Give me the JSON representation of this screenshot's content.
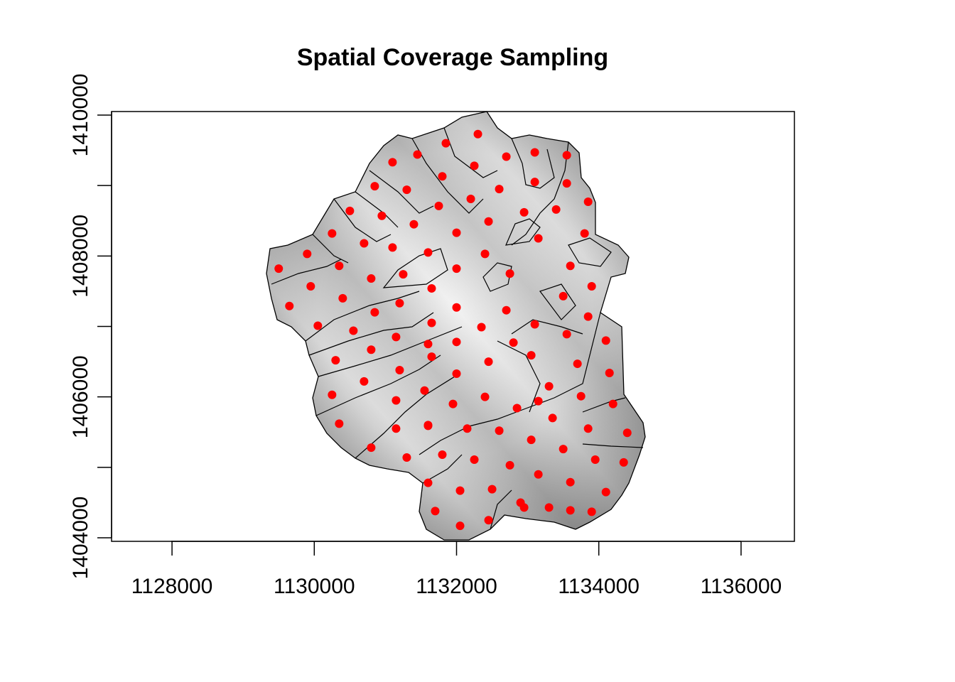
{
  "chart_data": {
    "type": "scatter",
    "title": "Spatial Coverage Sampling",
    "xlabel": "",
    "ylabel": "",
    "xlim": [
      1127150,
      1136750
    ],
    "ylim": [
      1403950,
      1410050
    ],
    "x_ticks": [
      1128000,
      1130000,
      1132000,
      1134000,
      1136000
    ],
    "y_ticks": [
      1404000,
      1406000,
      1408000,
      1410000
    ],
    "x_tick_labels": [
      "1128000",
      "1130000",
      "1132000",
      "1134000",
      "1136000"
    ],
    "y_tick_labels": [
      "1404000",
      "1406000",
      "1408000",
      "1410000"
    ],
    "point_color": "#ff0000",
    "background_layer": "grayscale hillshade of watershed with sub-catchment boundaries",
    "series": [
      {
        "name": "sample points",
        "x": [
          1132300,
          1131850,
          1131450,
          1131100,
          1130850,
          1131300,
          1131800,
          1132250,
          1132700,
          1133100,
          1133550,
          1133100,
          1133550,
          1132600,
          1132200,
          1131750,
          1131400,
          1130500,
          1130950,
          1132450,
          1132950,
          1133400,
          1133850,
          1130250,
          1129900,
          1130700,
          1131100,
          1131600,
          1132000,
          1132400,
          1133150,
          1133800,
          1129500,
          1130350,
          1130800,
          1131250,
          1131650,
          1132000,
          1132750,
          1133600,
          1129950,
          1129650,
          1130400,
          1131200,
          1130850,
          1131650,
          1132000,
          1132350,
          1132700,
          1133100,
          1133500,
          1133900,
          1130050,
          1130550,
          1131150,
          1131650,
          1132450,
          1133050,
          1133550,
          1133850,
          1130300,
          1131200,
          1131600,
          1132000,
          1132800,
          1133150,
          1133700,
          1134100,
          1130800,
          1131550,
          1132000,
          1132400,
          1133300,
          1134150,
          1130250,
          1130700,
          1131150,
          1131600,
          1131950,
          1132850,
          1133350,
          1133750,
          1134200,
          1130350,
          1131150,
          1131600,
          1132150,
          1132600,
          1133050,
          1133500,
          1133850,
          1134400,
          1130800,
          1131300,
          1131800,
          1132250,
          1132750,
          1133150,
          1133600,
          1133950,
          1134350,
          1131600,
          1132050,
          1132500,
          1132900,
          1133300,
          1133900,
          1134100,
          1131700,
          1132050,
          1132450,
          1132950,
          1133600
        ],
        "y": [
          1409730,
          1409600,
          1409440,
          1409330,
          1408990,
          1408940,
          1409130,
          1409280,
          1409410,
          1409470,
          1409430,
          1409050,
          1409030,
          1408950,
          1408810,
          1408710,
          1408450,
          1408640,
          1408570,
          1408490,
          1408620,
          1408660,
          1408770,
          1408320,
          1408030,
          1408180,
          1408120,
          1408050,
          1408330,
          1408030,
          1408250,
          1408320,
          1407820,
          1407860,
          1407680,
          1407740,
          1407540,
          1407820,
          1407750,
          1407860,
          1407570,
          1407290,
          1407400,
          1407330,
          1407200,
          1407050,
          1407270,
          1406990,
          1407230,
          1407030,
          1407430,
          1407570,
          1407010,
          1406940,
          1406850,
          1406570,
          1406500,
          1406590,
          1406890,
          1407140,
          1406520,
          1406380,
          1406750,
          1406780,
          1406770,
          1405940,
          1406470,
          1406800,
          1406670,
          1406090,
          1406330,
          1406000,
          1406150,
          1406340,
          1406030,
          1406220,
          1405950,
          1405600,
          1405900,
          1405840,
          1405700,
          1406010,
          1405900,
          1405620,
          1405550,
          1405590,
          1405550,
          1405520,
          1405390,
          1405260,
          1405550,
          1405490,
          1405280,
          1405140,
          1405180,
          1405110,
          1405030,
          1404900,
          1404790,
          1405110,
          1405070,
          1404780,
          1404670,
          1404690,
          1404500,
          1404430,
          1404370,
          1404650,
          1404380,
          1404170,
          1404250,
          1404430,
          1404390
        ]
      }
    ]
  }
}
